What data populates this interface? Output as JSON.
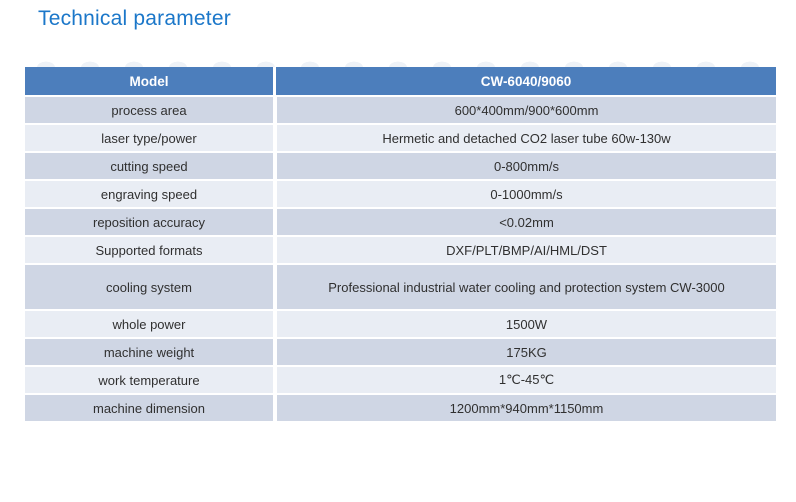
{
  "page": {
    "title": "Technical parameter"
  },
  "colors": {
    "title_color": "#1b77c9",
    "header_bg": "#4c7ebc",
    "row_dark": "#cfd6e4",
    "row_light": "#e9edf4",
    "text_color": "#303030"
  },
  "table": {
    "header": {
      "model_label": "Model",
      "model_value": "CW-6040/9060"
    },
    "rows": [
      {
        "label": "process area",
        "value": "600*400mm/900*600mm"
      },
      {
        "label": "laser type/power",
        "value": "Hermetic and detached CO2 laser tube 60w-130w"
      },
      {
        "label": "cutting speed",
        "value": "0-800mm/s"
      },
      {
        "label": "engraving speed",
        "value": "0-1000mm/s"
      },
      {
        "label": "reposition accuracy",
        "value": "<0.02mm"
      },
      {
        "label": "Supported formats",
        "value": "DXF/PLT/BMP/AI/HML/DST"
      },
      {
        "label": "cooling system",
        "value": "Professional industrial water cooling and protection system CW-3000",
        "tall": true
      },
      {
        "label": "whole power",
        "value": "1500W"
      },
      {
        "label": "machine weight",
        "value": "175KG"
      },
      {
        "label": "work temperature",
        "value": "1℃-45℃"
      },
      {
        "label": "machine dimension",
        "value": "1200mm*940mm*1150mm"
      }
    ]
  }
}
